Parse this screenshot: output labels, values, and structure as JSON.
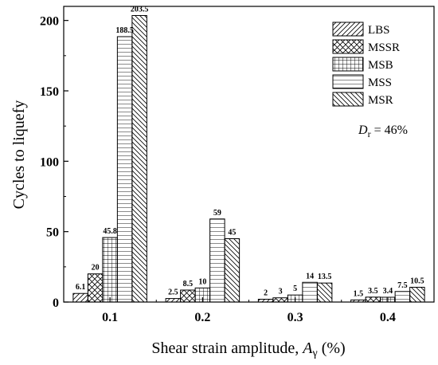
{
  "chart_data": {
    "type": "bar",
    "categories": [
      "0.1",
      "0.2",
      "0.3",
      "0.4"
    ],
    "series": [
      {
        "name": "LBS",
        "pattern": "hatch-diagonal-forward",
        "values": [
          6.1,
          2.5,
          2,
          1.5
        ],
        "labels": [
          "6.1",
          "2.5",
          "2",
          "1.5"
        ]
      },
      {
        "name": "MSSR",
        "pattern": "hatch-crosshatch-diagonal",
        "values": [
          20,
          8.5,
          3,
          3.5
        ],
        "labels": [
          "20",
          "8.5",
          "3",
          "3.5"
        ]
      },
      {
        "name": "MSB",
        "pattern": "hatch-grid",
        "values": [
          45.8,
          10,
          5,
          3.4
        ],
        "labels": [
          "45.8",
          "10",
          "5",
          "3.4"
        ]
      },
      {
        "name": "MSS",
        "pattern": "hatch-horizontal",
        "values": [
          188.5,
          59,
          14,
          7.5
        ],
        "labels": [
          "188.5",
          "59",
          "14",
          "7.5"
        ]
      },
      {
        "name": "MSR",
        "pattern": "hatch-diagonal-backward",
        "values": [
          203.5,
          45,
          13.5,
          10.5
        ],
        "labels": [
          "203.5",
          "45",
          "13.5",
          "10.5"
        ]
      }
    ],
    "xlabel_main": "Shear strain amplitude, ",
    "xlabel_symbol": "A",
    "xlabel_sub": "γ",
    "xlabel_unit": " (%)",
    "ylabel": "Cycles to liquefy",
    "ylim": [
      0,
      210
    ],
    "yticks": [
      0,
      50,
      100,
      150,
      200
    ],
    "yticks_labels": [
      "0",
      "50",
      "100",
      "150",
      "200"
    ],
    "grid": false,
    "legend_position": "top-right",
    "annotation": {
      "symbol": "D",
      "sub": "r",
      "text": " = 46%"
    }
  }
}
